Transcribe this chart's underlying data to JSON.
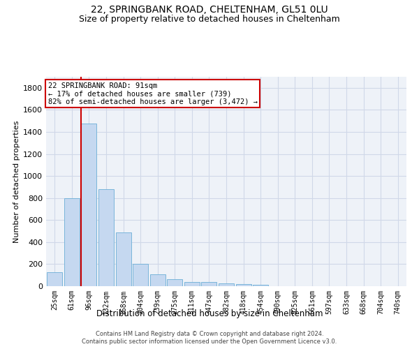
{
  "title1": "22, SPRINGBANK ROAD, CHELTENHAM, GL51 0LU",
  "title2": "Size of property relative to detached houses in Cheltenham",
  "xlabel": "Distribution of detached houses by size in Cheltenham",
  "ylabel": "Number of detached properties",
  "categories": [
    "25sqm",
    "61sqm",
    "96sqm",
    "132sqm",
    "168sqm",
    "204sqm",
    "239sqm",
    "275sqm",
    "311sqm",
    "347sqm",
    "382sqm",
    "418sqm",
    "454sqm",
    "490sqm",
    "525sqm",
    "561sqm",
    "597sqm",
    "633sqm",
    "668sqm",
    "704sqm",
    "740sqm"
  ],
  "values": [
    125,
    800,
    1475,
    880,
    490,
    205,
    105,
    65,
    40,
    35,
    25,
    20,
    10,
    0,
    0,
    0,
    0,
    0,
    0,
    0,
    0
  ],
  "bar_color": "#c5d8f0",
  "bar_edge_color": "#6baed6",
  "vline_index": 2,
  "vline_color": "#cc0000",
  "annotation_text": "22 SPRINGBANK ROAD: 91sqm\n← 17% of detached houses are smaller (739)\n82% of semi-detached houses are larger (3,472) →",
  "annotation_box_color": "#cc0000",
  "ylim": [
    0,
    1900
  ],
  "yticks": [
    0,
    200,
    400,
    600,
    800,
    1000,
    1200,
    1400,
    1600,
    1800
  ],
  "footer1": "Contains HM Land Registry data © Crown copyright and database right 2024.",
  "footer2": "Contains public sector information licensed under the Open Government Licence v3.0.",
  "bg_color": "#ffffff",
  "plot_bg_color": "#eef2f8",
  "grid_color": "#d0d8e8",
  "title1_fontsize": 10,
  "title2_fontsize": 9,
  "xlabel_fontsize": 8.5,
  "ylabel_fontsize": 8,
  "tick_fontsize": 8,
  "footer_fontsize": 6
}
